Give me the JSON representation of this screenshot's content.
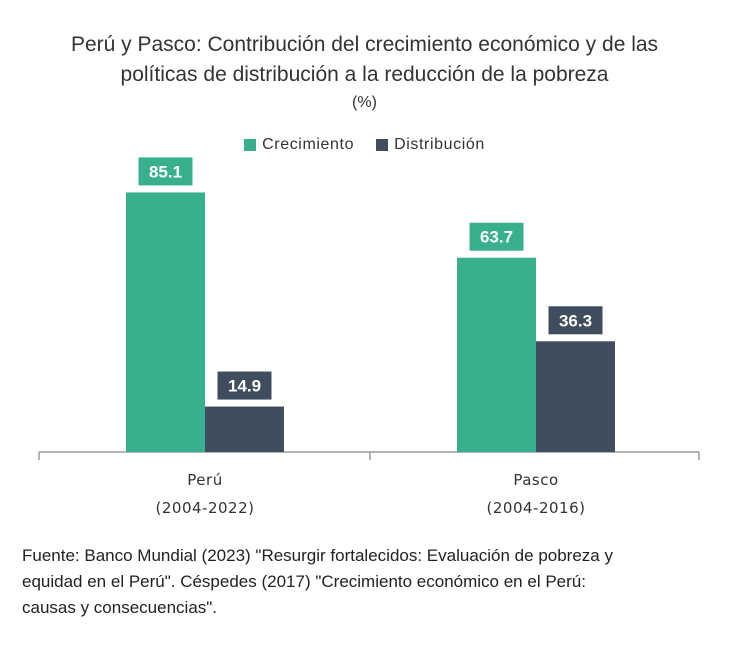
{
  "chart_data": {
    "type": "bar",
    "title_lines": [
      "Perú y Pasco: Contribución del crecimiento económico y de las",
      "políticas de distribución a la reducción de la pobreza"
    ],
    "unit_label": "(%)",
    "categories": [
      {
        "name": "Perú",
        "period": "(2004-2022)"
      },
      {
        "name": "Pasco",
        "period": "(2004-2016)"
      }
    ],
    "series": [
      {
        "name": "Crecimiento",
        "color": "#38b08d",
        "values": [
          85.1,
          63.7
        ],
        "labels": [
          "85.1",
          "63.7"
        ]
      },
      {
        "name": "Distribución",
        "color": "#3f4d5f",
        "values": [
          14.9,
          36.3
        ],
        "labels": [
          "14.9",
          "36.3"
        ]
      }
    ],
    "ylim": [
      0,
      100
    ],
    "grid": false,
    "legend_position": "top-center"
  },
  "source": {
    "lines": [
      "Fuente: Banco Mundial (2023) \"Resurgir fortalecidos: Evaluación de pobreza y",
      "equidad en el Perú\". Céspedes (2017) \"Crecimiento económico en el Perú:",
      "causas y consecuencias\"."
    ]
  }
}
